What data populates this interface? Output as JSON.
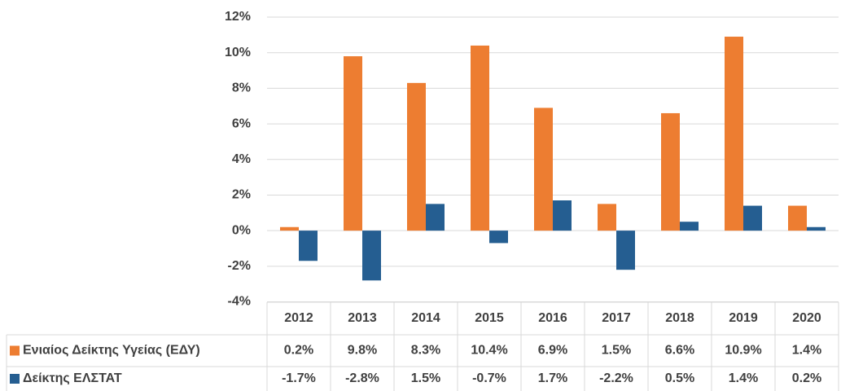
{
  "chart_data": {
    "type": "bar",
    "categories": [
      "2012",
      "2013",
      "2014",
      "2015",
      "2016",
      "2017",
      "2018",
      "2019",
      "2020"
    ],
    "series": [
      {
        "name": "Ενιαίος Δείκτης Υγείας (ΕΔΥ)",
        "color": "#ED7D31",
        "values": [
          0.2,
          9.8,
          8.3,
          10.4,
          6.9,
          1.5,
          6.6,
          10.9,
          1.4
        ],
        "value_labels": [
          "0.2%",
          "9.8%",
          "8.3%",
          "10.4%",
          "6.9%",
          "1.5%",
          "6.6%",
          "10.9%",
          "1.4%"
        ]
      },
      {
        "name": "Δείκτης ΕΛΣΤΑΤ",
        "color": "#255E91",
        "values": [
          -1.7,
          -2.8,
          1.5,
          -0.7,
          1.7,
          -2.2,
          0.5,
          1.4,
          0.2
        ],
        "value_labels": [
          "-1.7%",
          "-2.8%",
          "1.5%",
          "-0.7%",
          "1.7%",
          "-2.2%",
          "0.5%",
          "1.4%",
          "0.2%"
        ]
      }
    ],
    "ylim": [
      -4,
      12
    ],
    "yticks": [
      {
        "value": -4,
        "label": "-4%"
      },
      {
        "value": -2,
        "label": "-2%"
      },
      {
        "value": 0,
        "label": "0%"
      },
      {
        "value": 2,
        "label": "2%"
      },
      {
        "value": 4,
        "label": "4%"
      },
      {
        "value": 6,
        "label": "6%"
      },
      {
        "value": 8,
        "label": "8%"
      },
      {
        "value": 10,
        "label": "10%"
      },
      {
        "value": 12,
        "label": "12%"
      }
    ],
    "grid": true
  }
}
